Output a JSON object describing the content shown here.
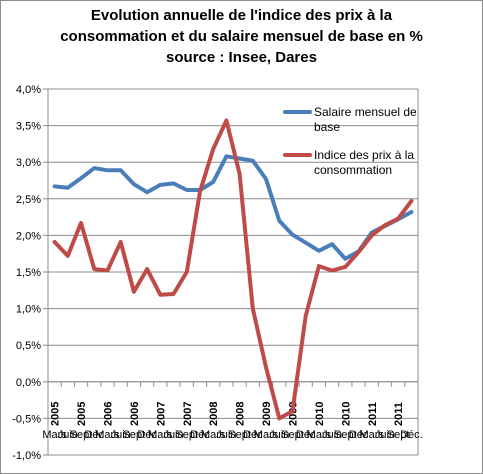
{
  "chart_data": {
    "type": "line",
    "title_lines": [
      "Evolution annuelle de l'indice des prix à la",
      "consommation et du salaire mensuel de base en %",
      "source : Insee, Dares"
    ],
    "y_tick_labels": [
      "4,0%",
      "3,5%",
      "3,0%",
      "2,5%",
      "2,0%",
      "1,5%",
      "1,0%",
      "0,5%",
      "0,0%",
      "-0,5%",
      "-1,0%"
    ],
    "ylim": [
      -1.0,
      4.0
    ],
    "x_year_labels": [
      "2005",
      "2005",
      "2006",
      "2006",
      "2007",
      "2007",
      "2008",
      "2008",
      "2009",
      "2009",
      "2010",
      "2010",
      "2011",
      "2011"
    ],
    "x_period_labels": [
      "Mars",
      "Juin",
      "Sept",
      "Déc",
      "Mars",
      "Juin",
      "Sept",
      "Déc",
      "Mars",
      "Juin",
      "Sept",
      "Déc",
      "Mars",
      "Juin",
      "Sept",
      "Déc",
      "Mars",
      "Juin",
      "Sept",
      "Déc",
      "Mars",
      "Juin",
      "Sept",
      "Déc",
      "Mars",
      "Juin",
      "Sept",
      "Déc"
    ],
    "x_period_labels_display": [
      "Mars",
      "Juin",
      "Sept",
      "Déc",
      "Mars",
      "Juin",
      "Sept",
      "Déc",
      "Mars",
      "Juin",
      "Sept",
      "Déc",
      "Mars",
      "Juin",
      "Sept",
      "Déc",
      "Mars",
      "Juin",
      "Sept",
      "Déc",
      "Mars",
      "Juin",
      "Sept",
      "Déc",
      "Mars",
      "Juin",
      "Sept",
      "Déc."
    ],
    "grid": "horizontal",
    "legend_position": "right",
    "series": [
      {
        "name": "Salaire mensuel de base",
        "legend_lines": [
          "Salaire mensuel de",
          "base"
        ],
        "color": "#4a7ebb",
        "values": [
          2.67,
          2.65,
          2.78,
          2.92,
          2.89,
          2.89,
          2.7,
          2.59,
          2.69,
          2.71,
          2.62,
          2.62,
          2.73,
          3.08,
          3.05,
          3.02,
          2.77,
          2.2,
          2.01,
          1.9,
          1.79,
          1.88,
          1.68,
          1.78,
          2.04,
          2.13,
          2.22,
          2.32
        ]
      },
      {
        "name": "Indice des prix à la consommation",
        "legend_lines": [
          "Indice des prix à la",
          "consommation"
        ],
        "color": "#be4b48",
        "values": [
          1.91,
          1.72,
          2.17,
          1.54,
          1.52,
          1.91,
          1.23,
          1.54,
          1.19,
          1.2,
          1.5,
          2.6,
          3.18,
          3.57,
          2.84,
          1.0,
          0.2,
          -0.5,
          -0.4,
          0.9,
          1.58,
          1.52,
          1.57,
          1.77,
          2.0,
          2.14,
          2.23,
          2.47
        ]
      }
    ]
  }
}
